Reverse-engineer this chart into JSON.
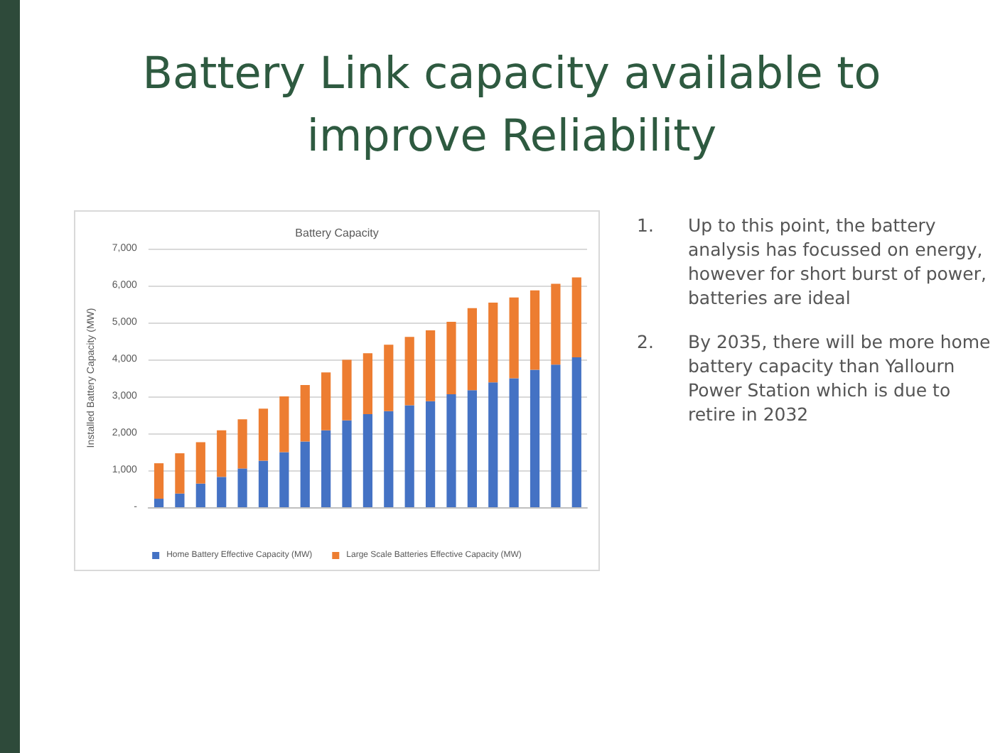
{
  "chart_data": {
    "type": "bar",
    "title": "Battery Link capacity available to improve Reliability",
    "subtitle": "Battery Capacity",
    "ylabel": "Installed Battery Capacity (MW)",
    "categories": [
      null,
      null,
      null,
      null,
      null,
      null,
      null,
      null,
      null,
      null,
      null,
      null,
      null,
      null,
      null,
      null,
      null,
      null,
      null,
      null,
      null
    ],
    "stacked": true,
    "series": [
      {
        "name": "Home Battery Effective Capacity (MW)",
        "color": "#4472c4",
        "values": [
          230,
          370,
          640,
          820,
          1050,
          1260,
          1490,
          1780,
          2080,
          2350,
          2520,
          2600,
          2760,
          2870,
          3060,
          3170,
          3380,
          3490,
          3720,
          3860,
          4060
        ]
      },
      {
        "name": "Large Scale Batteries Effective Capacity (MW)",
        "color": "#ed7d31",
        "values": [
          960,
          1090,
          1120,
          1260,
          1330,
          1410,
          1510,
          1530,
          1570,
          1640,
          1650,
          1800,
          1850,
          1920,
          1960,
          2220,
          2160,
          2190,
          2150,
          2190,
          2160
        ]
      }
    ],
    "ylim": [
      0,
      7000
    ],
    "yticks": [
      {
        "value": 0,
        "label": "-"
      },
      {
        "value": 1000,
        "label": "1,000"
      },
      {
        "value": 2000,
        "label": "2,000"
      },
      {
        "value": 3000,
        "label": "3,000"
      },
      {
        "value": 4000,
        "label": "4,000"
      },
      {
        "value": 5000,
        "label": "5,000"
      },
      {
        "value": 6000,
        "label": "6,000"
      },
      {
        "value": 7000,
        "label": "7,000"
      }
    ],
    "grid": "y",
    "legend": "bottom",
    "annotations": [
      "1.",
      "Up to this point, the battery analysis has focussed on energy, however for short burst of power, batteries are ideal",
      "2.",
      "By 2035, there will be more home battery capacity than Yallourn Power Station which is due to retire in 2032"
    ]
  }
}
